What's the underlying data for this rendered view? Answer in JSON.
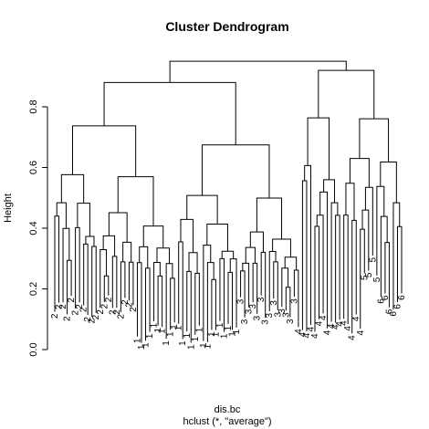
{
  "chart_data": {
    "type": "dendrogram",
    "title": "Cluster Dendrogram",
    "xlabel": "dis.bc",
    "sublabel": "hclust (*, \"average\")",
    "ylabel": "Height",
    "ylim": [
      0,
      0.95
    ],
    "yticks": [
      0.0,
      0.2,
      0.4,
      0.6,
      0.8
    ],
    "ytick_labels": [
      "0.0",
      "0.2",
      "0.4",
      "0.6",
      "0.8"
    ],
    "root_height": 0.95,
    "top_merges": [
      {
        "height": 0.95,
        "joins": [
          "left-cluster",
          "right-cluster"
        ]
      },
      {
        "height": 0.88,
        "joins": [
          "left-A",
          "left-B"
        ]
      },
      {
        "height": 0.92,
        "joins": [
          "right-A",
          "right-B"
        ]
      },
      {
        "height": 0.74,
        "joins": [
          "left-A1",
          "left-A2"
        ]
      },
      {
        "height": 0.86,
        "joins": [
          "right-B1",
          "right-B2"
        ]
      },
      {
        "height": 0.78,
        "joins": [
          "right-A1",
          "right-A2"
        ]
      },
      {
        "height": 0.8,
        "joins": [
          "right-B2a",
          "right-B2b"
        ]
      }
    ],
    "leaf_labels": [
      "2",
      "2",
      "2",
      "2",
      "2",
      "2",
      "2",
      "2",
      "2",
      "2",
      "2",
      "2",
      "2",
      "2",
      "2",
      "2",
      "2",
      "2",
      "2",
      "2",
      "1",
      "1",
      "1",
      "1",
      "1",
      "1",
      "1",
      "1",
      "1",
      "1",
      "1",
      "1",
      "1",
      "1",
      "1",
      "1",
      "1",
      "1",
      "1",
      "1",
      "1",
      "1",
      "1",
      "1",
      "1",
      "3",
      "3",
      "3",
      "3",
      "3",
      "3",
      "3",
      "3",
      "3",
      "3",
      "3",
      "3",
      "3",
      "3",
      "4",
      "4",
      "4",
      "4",
      "4",
      "4",
      "4",
      "4",
      "4",
      "4",
      "4",
      "4",
      "4",
      "4",
      "4",
      "4",
      "5",
      "5",
      "5",
      "5",
      "6",
      "6",
      "6",
      "6",
      "6",
      "6"
    ]
  }
}
